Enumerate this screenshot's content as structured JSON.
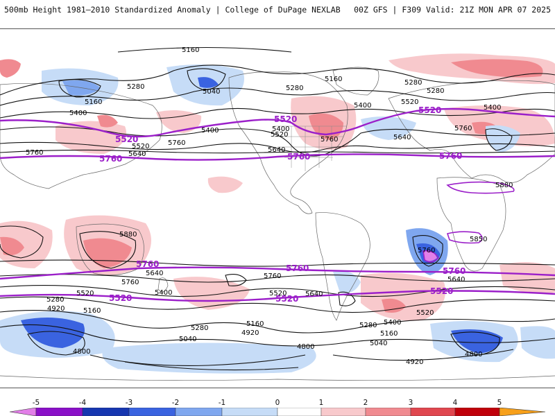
{
  "header": {
    "title_left": "500mb Height 1981–2010 Standardized Anomaly | College of DuPage NEXLAB",
    "title_right": "00Z GFS | F309 Valid: 21Z MON APR 07 2025"
  },
  "colors": {
    "purple_contour": "#9b1fc9",
    "black_contour": "#111111",
    "pos_1": "#f8c9cc",
    "pos_2": "#f08a90",
    "pos_3": "#e0474f",
    "pos_4": "#c0000a",
    "pos_5": "#f7a01a",
    "neg_1": "#c6dcf7",
    "neg_2": "#7fa7ef",
    "neg_3": "#3a63e0",
    "neg_4": "#1636b0",
    "neg_5": "#8a10c8",
    "neg_extreme": "#e27fe8"
  },
  "colorbar": {
    "ticks": [
      "-5",
      "-4",
      "-3",
      "-2",
      "-1",
      "0",
      "1",
      "2",
      "3",
      "4",
      "5"
    ]
  },
  "contour_labels": [
    {
      "text": "5160",
      "kind": "black"
    },
    {
      "text": "5280",
      "kind": "black"
    },
    {
      "text": "5040",
      "kind": "black"
    },
    {
      "text": "5160",
      "kind": "black"
    },
    {
      "text": "5400",
      "kind": "black"
    },
    {
      "text": "5280",
      "kind": "black"
    },
    {
      "text": "5160",
      "kind": "black"
    },
    {
      "text": "5400",
      "kind": "black"
    },
    {
      "text": "5280",
      "kind": "black"
    },
    {
      "text": "5280",
      "kind": "black"
    },
    {
      "text": "5400",
      "kind": "black"
    },
    {
      "text": "5520",
      "kind": "purple"
    },
    {
      "text": "5520",
      "kind": "black"
    },
    {
      "text": "5520",
      "kind": "purple"
    },
    {
      "text": "5520",
      "kind": "black"
    },
    {
      "text": "5400",
      "kind": "black"
    },
    {
      "text": "5400",
      "kind": "black"
    },
    {
      "text": "5520",
      "kind": "purple"
    },
    {
      "text": "5520",
      "kind": "black"
    },
    {
      "text": "5640",
      "kind": "black"
    },
    {
      "text": "5760",
      "kind": "black"
    },
    {
      "text": "5640",
      "kind": "black"
    },
    {
      "text": "5760",
      "kind": "black"
    },
    {
      "text": "5760",
      "kind": "purple"
    },
    {
      "text": "5760",
      "kind": "black"
    },
    {
      "text": "5640",
      "kind": "black"
    },
    {
      "text": "5760",
      "kind": "purple"
    },
    {
      "text": "5760",
      "kind": "black"
    },
    {
      "text": "5760",
      "kind": "purple"
    },
    {
      "text": "5880",
      "kind": "black"
    },
    {
      "text": "5880",
      "kind": "black"
    },
    {
      "text": "5850",
      "kind": "black"
    },
    {
      "text": "5760",
      "kind": "black"
    },
    {
      "text": "5760",
      "kind": "purple"
    },
    {
      "text": "5760",
      "kind": "black"
    },
    {
      "text": "5640",
      "kind": "black"
    },
    {
      "text": "5760",
      "kind": "black"
    },
    {
      "text": "5760",
      "kind": "purple"
    },
    {
      "text": "5760",
      "kind": "purple"
    },
    {
      "text": "5640",
      "kind": "black"
    },
    {
      "text": "5520",
      "kind": "black"
    },
    {
      "text": "5520",
      "kind": "purple"
    },
    {
      "text": "5400",
      "kind": "black"
    },
    {
      "text": "5520",
      "kind": "black"
    },
    {
      "text": "5520",
      "kind": "purple"
    },
    {
      "text": "5640",
      "kind": "black"
    },
    {
      "text": "5520",
      "kind": "purple"
    },
    {
      "text": "5520",
      "kind": "black"
    },
    {
      "text": "5280",
      "kind": "black"
    },
    {
      "text": "4920",
      "kind": "black"
    },
    {
      "text": "5160",
      "kind": "black"
    },
    {
      "text": "5280",
      "kind": "black"
    },
    {
      "text": "5160",
      "kind": "black"
    },
    {
      "text": "5040",
      "kind": "black"
    },
    {
      "text": "4920",
      "kind": "black"
    },
    {
      "text": "5280",
      "kind": "black"
    },
    {
      "text": "5400",
      "kind": "black"
    },
    {
      "text": "5160",
      "kind": "black"
    },
    {
      "text": "5040",
      "kind": "black"
    },
    {
      "text": "4800",
      "kind": "black"
    },
    {
      "text": "4800",
      "kind": "black"
    },
    {
      "text": "4800",
      "kind": "black"
    },
    {
      "text": "4920",
      "kind": "black"
    }
  ]
}
